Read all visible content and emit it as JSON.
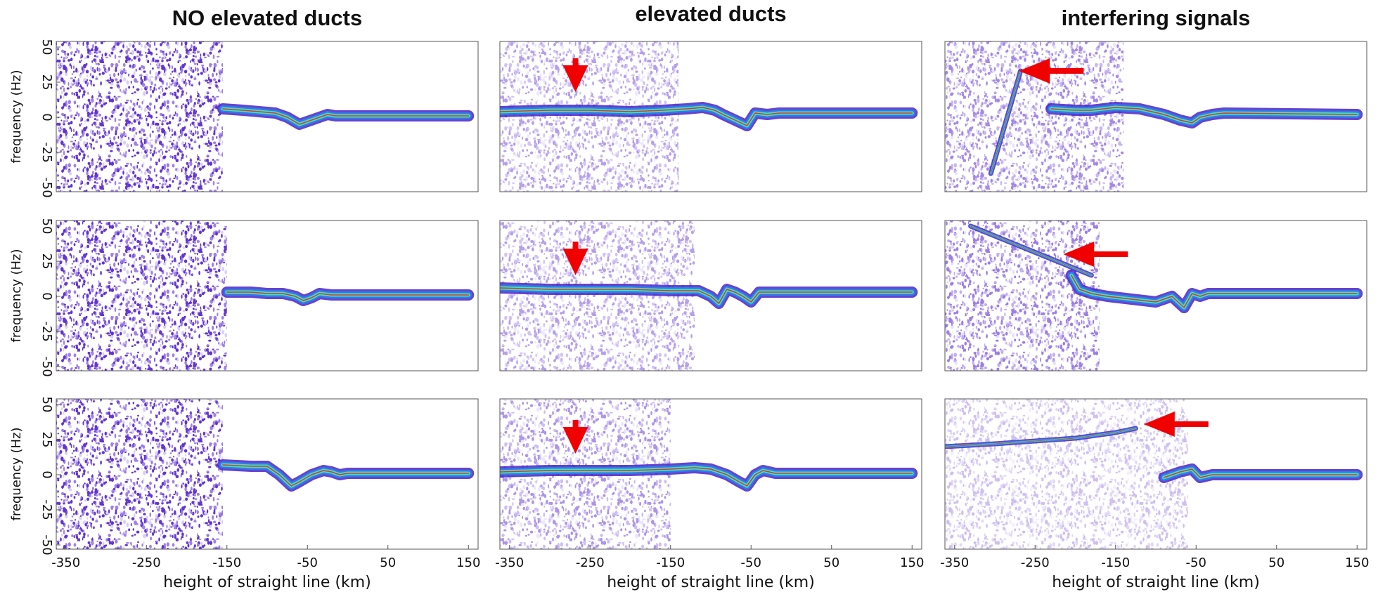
{
  "chart_data": [
    {
      "type": "spectrogram",
      "title": "NO elevated ducts",
      "ylabel": "frequency (Hz)",
      "xlim": [
        -362,
        162
      ],
      "ylim": [
        -53,
        54
      ],
      "yticks": [
        50,
        25,
        0,
        -25,
        -50
      ],
      "noise_extent": [
        -362,
        -155
      ],
      "noise_opacity": 0.95,
      "band_colors": [
        "#4b22c9",
        "#2f7be8",
        "#45e0c0",
        "#d43a2a"
      ],
      "signal": {
        "x": [
          -155,
          -130,
          -110,
          -90,
          -75,
          -60,
          -50,
          -35,
          -25,
          -15,
          0,
          150
        ],
        "values": [
          6,
          5,
          4,
          3,
          0,
          -5,
          -3,
          0,
          2,
          1,
          1,
          1
        ]
      }
    },
    {
      "type": "spectrogram",
      "title": "elevated ducts",
      "xlim": [
        -362,
        162
      ],
      "ylim": [
        -53,
        54
      ],
      "noise_extent": [
        -362,
        -140
      ],
      "noise_opacity": 0.45,
      "band_colors": [
        "#4b22c9",
        "#2f7be8",
        "#45e0c0",
        "#d43a2a"
      ],
      "signal": {
        "x": [
          -362,
          -300,
          -250,
          -200,
          -160,
          -130,
          -110,
          -95,
          -85,
          -70,
          -55,
          -45,
          -30,
          -15,
          150
        ],
        "values": [
          4,
          5,
          5,
          4,
          5,
          6,
          7,
          5,
          2,
          -2,
          -6,
          3,
          2,
          3,
          3
        ]
      },
      "arrows": [
        {
          "x": -268,
          "y": 18,
          "direction": "down"
        }
      ],
      "arrow_color": "#f00000"
    },
    {
      "type": "spectrogram",
      "title": "interfering signals",
      "xlim": [
        -362,
        162
      ],
      "ylim": [
        -53,
        54
      ],
      "noise_extent": [
        -362,
        -140
      ],
      "noise_opacity": 0.55,
      "band_colors": [
        "#4b22c9",
        "#2f7be8",
        "#45e0c0",
        "#d43a2a"
      ],
      "signal": {
        "x": [
          -230,
          -200,
          -180,
          -150,
          -120,
          -90,
          -70,
          -55,
          -45,
          -30,
          -15,
          150
        ],
        "values": [
          6,
          5,
          5,
          7,
          6,
          2,
          -2,
          -4,
          0,
          2,
          3,
          2
        ]
      },
      "interference": {
        "x": [
          -305,
          -268
        ],
        "values": [
          -40,
          33
        ]
      },
      "arrows": [
        {
          "x": -270,
          "y": 33,
          "direction": "left"
        }
      ],
      "arrow_color": "#f00000"
    },
    {
      "type": "spectrogram",
      "ylabel": "frequency (Hz)",
      "xlim": [
        -362,
        162
      ],
      "ylim": [
        -53,
        54
      ],
      "yticks": [
        50,
        25,
        0,
        -25,
        -50
      ],
      "noise_extent": [
        -362,
        -150
      ],
      "noise_opacity": 0.95,
      "band_colors": [
        "#4b22c9",
        "#2f7be8",
        "#45e0c0",
        "#d43a2a"
      ],
      "signal": {
        "x": [
          -150,
          -120,
          -100,
          -80,
          -65,
          -55,
          -45,
          -35,
          -20,
          150
        ],
        "values": [
          3,
          3,
          2,
          2,
          0,
          -3,
          -1,
          2,
          1,
          1
        ]
      }
    },
    {
      "type": "spectrogram",
      "xlim": [
        -362,
        162
      ],
      "ylim": [
        -53,
        54
      ],
      "noise_extent": [
        -362,
        -120
      ],
      "noise_opacity": 0.45,
      "band_colors": [
        "#4b22c9",
        "#2f7be8",
        "#45e0c0",
        "#d43a2a"
      ],
      "signal": {
        "x": [
          -362,
          -300,
          -250,
          -200,
          -150,
          -115,
          -100,
          -90,
          -80,
          -70,
          -60,
          -50,
          -40,
          -20,
          150
        ],
        "values": [
          6,
          5,
          5,
          5,
          4,
          4,
          0,
          -5,
          5,
          3,
          0,
          -4,
          3,
          3,
          3
        ]
      },
      "arrows": [
        {
          "x": -268,
          "y": 15,
          "direction": "down"
        }
      ],
      "arrow_color": "#f00000"
    },
    {
      "type": "spectrogram",
      "xlim": [
        -362,
        162
      ],
      "ylim": [
        -53,
        54
      ],
      "noise_extent": [
        -362,
        -170
      ],
      "noise_opacity": 0.6,
      "band_colors": [
        "#4b22c9",
        "#2f7be8",
        "#45e0c0",
        "#d43a2a"
      ],
      "signal": {
        "x": [
          -205,
          -195,
          -180,
          -160,
          -130,
          -100,
          -80,
          -65,
          -55,
          -45,
          -35,
          -20,
          150
        ],
        "values": [
          15,
          5,
          2,
          0,
          -2,
          -4,
          0,
          -8,
          2,
          0,
          2,
          2,
          2
        ]
      },
      "interference": {
        "x": [
          -330,
          -180
        ],
        "values": [
          50,
          15
        ]
      },
      "arrows": [
        {
          "x": -215,
          "y": 30,
          "direction": "left"
        }
      ],
      "arrow_color": "#f00000"
    },
    {
      "type": "spectrogram",
      "ylabel": "frequency (Hz)",
      "xlabel": "height of straight line (km)",
      "xlim": [
        -362,
        162
      ],
      "ylim": [
        -53,
        54
      ],
      "yticks": [
        50,
        25,
        0,
        -25,
        -50
      ],
      "xticks": [
        -350,
        -250,
        -150,
        -50,
        50,
        150
      ],
      "noise_extent": [
        -362,
        -155
      ],
      "noise_opacity": 0.95,
      "band_colors": [
        "#4b22c9",
        "#2f7be8",
        "#45e0c0",
        "#d43a2a"
      ],
      "signal": {
        "x": [
          -155,
          -120,
          -100,
          -85,
          -70,
          -60,
          -45,
          -30,
          -20,
          -10,
          0,
          150
        ],
        "values": [
          7,
          6,
          6,
          0,
          -8,
          -5,
          0,
          3,
          2,
          0,
          1,
          1
        ]
      }
    },
    {
      "type": "spectrogram",
      "xlabel": "height of straight line (km)",
      "xlim": [
        -362,
        162
      ],
      "ylim": [
        -53,
        54
      ],
      "xticks": [
        -350,
        -250,
        -150,
        -50,
        50,
        150
      ],
      "noise_extent": [
        -362,
        -150
      ],
      "noise_opacity": 0.5,
      "band_colors": [
        "#4b22c9",
        "#2f7be8",
        "#45e0c0",
        "#d43a2a"
      ],
      "signal": {
        "x": [
          -362,
          -300,
          -250,
          -200,
          -150,
          -120,
          -100,
          -80,
          -65,
          -55,
          -45,
          -35,
          -20,
          150
        ],
        "values": [
          2,
          3,
          3,
          3,
          4,
          5,
          4,
          0,
          -5,
          -8,
          0,
          3,
          1,
          1
        ]
      },
      "arrows": [
        {
          "x": -268,
          "y": 15,
          "direction": "down"
        }
      ],
      "arrow_color": "#f00000"
    },
    {
      "type": "spectrogram",
      "xlabel": "height of straight line (km)",
      "xlim": [
        -362,
        162
      ],
      "ylim": [
        -53,
        54
      ],
      "xticks": [
        -350,
        -250,
        -150,
        -50,
        50,
        150
      ],
      "noise_extent": [
        -362,
        -60
      ],
      "noise_opacity": 0.3,
      "band_colors": [
        "#4b22c9",
        "#2f7be8",
        "#45e0c0",
        "#d43a2a"
      ],
      "signal": {
        "x": [
          -90,
          -70,
          -55,
          -45,
          -30,
          -15,
          0,
          50,
          150
        ],
        "values": [
          -2,
          2,
          4,
          -2,
          0,
          0,
          0,
          0,
          0
        ]
      },
      "interference": {
        "x": [
          -362,
          -300,
          -250,
          -200,
          -150,
          -125
        ],
        "values": [
          20,
          22,
          24,
          26,
          30,
          33
        ]
      },
      "arrows": [
        {
          "x": -115,
          "y": 36,
          "direction": "left"
        }
      ],
      "arrow_color": "#f00000"
    }
  ]
}
